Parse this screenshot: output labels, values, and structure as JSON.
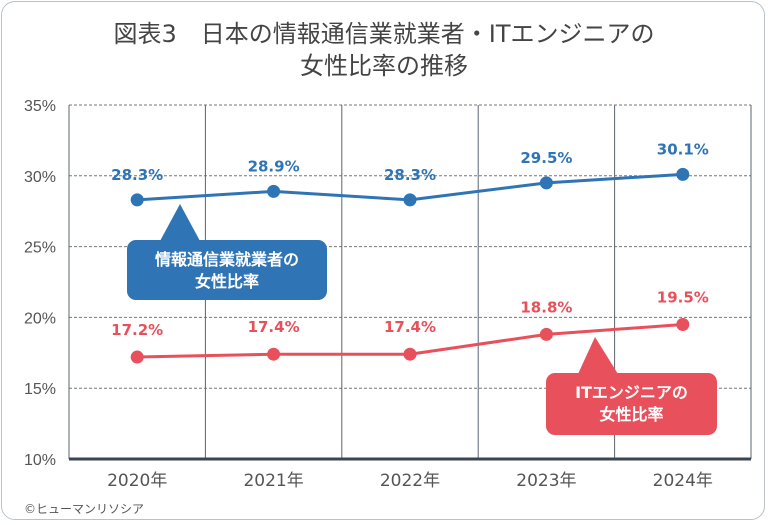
{
  "title_line1": "図表3　日本の情報通信業就業者・ITエンジニアの",
  "title_line2": "女性比率の推移",
  "credit": "©ヒューマンリソシア",
  "chart_data": {
    "type": "line",
    "categories": [
      "2020年",
      "2021年",
      "2022年",
      "2023年",
      "2024年"
    ],
    "ylim": [
      10,
      35
    ],
    "yticks": [
      10,
      15,
      20,
      25,
      30,
      35
    ],
    "ytick_labels": [
      "10%",
      "15%",
      "20%",
      "25%",
      "30%",
      "35%"
    ],
    "grid": true,
    "series": [
      {
        "name": "情報通信業就業者の\n女性比率",
        "label_lines": [
          "情報通信業就業者の",
          "女性比率"
        ],
        "color": "#2f74b5",
        "values": [
          28.3,
          28.9,
          28.3,
          29.5,
          30.1
        ],
        "data_labels": [
          "28.3%",
          "28.9%",
          "28.3%",
          "29.5%",
          "30.1%"
        ]
      },
      {
        "name": "ITエンジニアの\n女性比率",
        "label_lines": [
          "ITエンジニアの",
          "女性比率"
        ],
        "color": "#e8505b",
        "values": [
          17.2,
          17.4,
          17.4,
          18.8,
          19.5
        ],
        "data_labels": [
          "17.2%",
          "17.4%",
          "17.4%",
          "18.8%",
          "19.5%"
        ]
      }
    ]
  }
}
